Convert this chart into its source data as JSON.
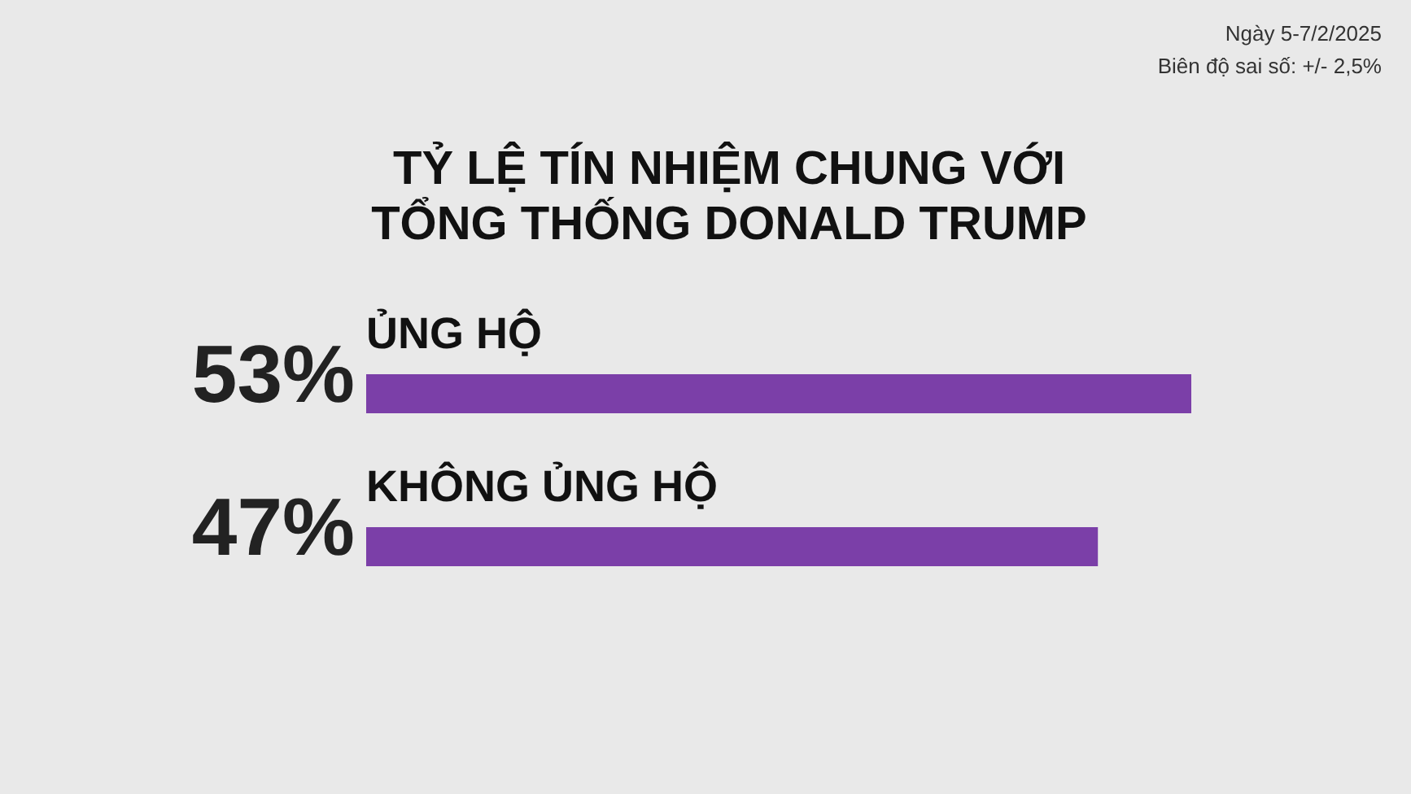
{
  "chart_data": {
    "type": "bar",
    "orientation": "horizontal",
    "title": "TỶ LỆ TÍN NHIỆM CHUNG VỚI\nTỔNG THỐNG DONALD TRUMP",
    "categories": [
      "ỦNG HỘ",
      "KHÔNG ỦNG HỘ"
    ],
    "values": [
      53,
      47
    ],
    "value_labels": [
      "53%",
      "47%"
    ],
    "color": "#7b3fa8",
    "annotations": [
      "Ngày 5-7/2/2025",
      "Biên độ sai số: +/- 2,5%"
    ]
  }
}
